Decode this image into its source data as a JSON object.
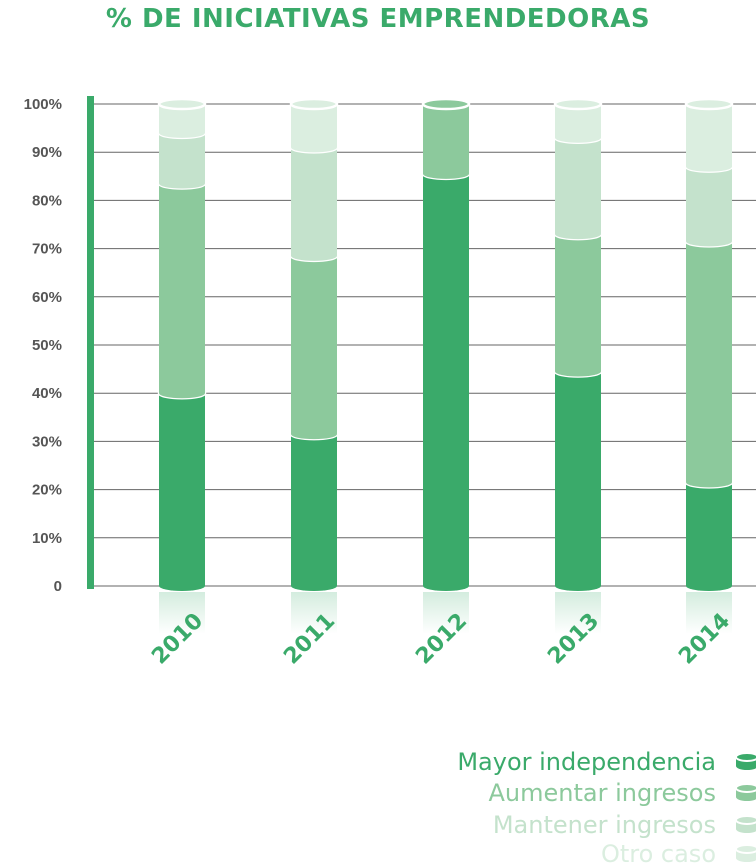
{
  "chart_data": {
    "type": "bar",
    "stacked": true,
    "title": "% DE INICIATIVAS EMPRENDEDORAS",
    "categories": [
      "2010",
      "2011",
      "2012",
      "2013",
      "2014"
    ],
    "y_ticks": [
      "0",
      "10%",
      "20%",
      "30%",
      "40%",
      "50%",
      "60%",
      "70%",
      "80%",
      "90%",
      "100%"
    ],
    "ylim": [
      0,
      100
    ],
    "grid": true,
    "legend_position": "bottom-right",
    "series": [
      {
        "name": "Mayor independencia",
        "color": "#3aaa6a",
        "values": [
          40,
          31.5,
          85.5,
          44.5,
          21.5
        ]
      },
      {
        "name": "Aumentar ingresos",
        "color": "#8cc99c",
        "values": [
          43.5,
          37,
          14.5,
          28.5,
          50
        ]
      },
      {
        "name": "Mantener ingresos",
        "color": "#c4e2cc",
        "values": [
          10.5,
          22.5,
          0,
          20,
          15.5
        ]
      },
      {
        "name": "Otro caso",
        "color": "#dbeee0",
        "values": [
          6,
          9,
          0,
          7,
          13
        ]
      }
    ]
  }
}
